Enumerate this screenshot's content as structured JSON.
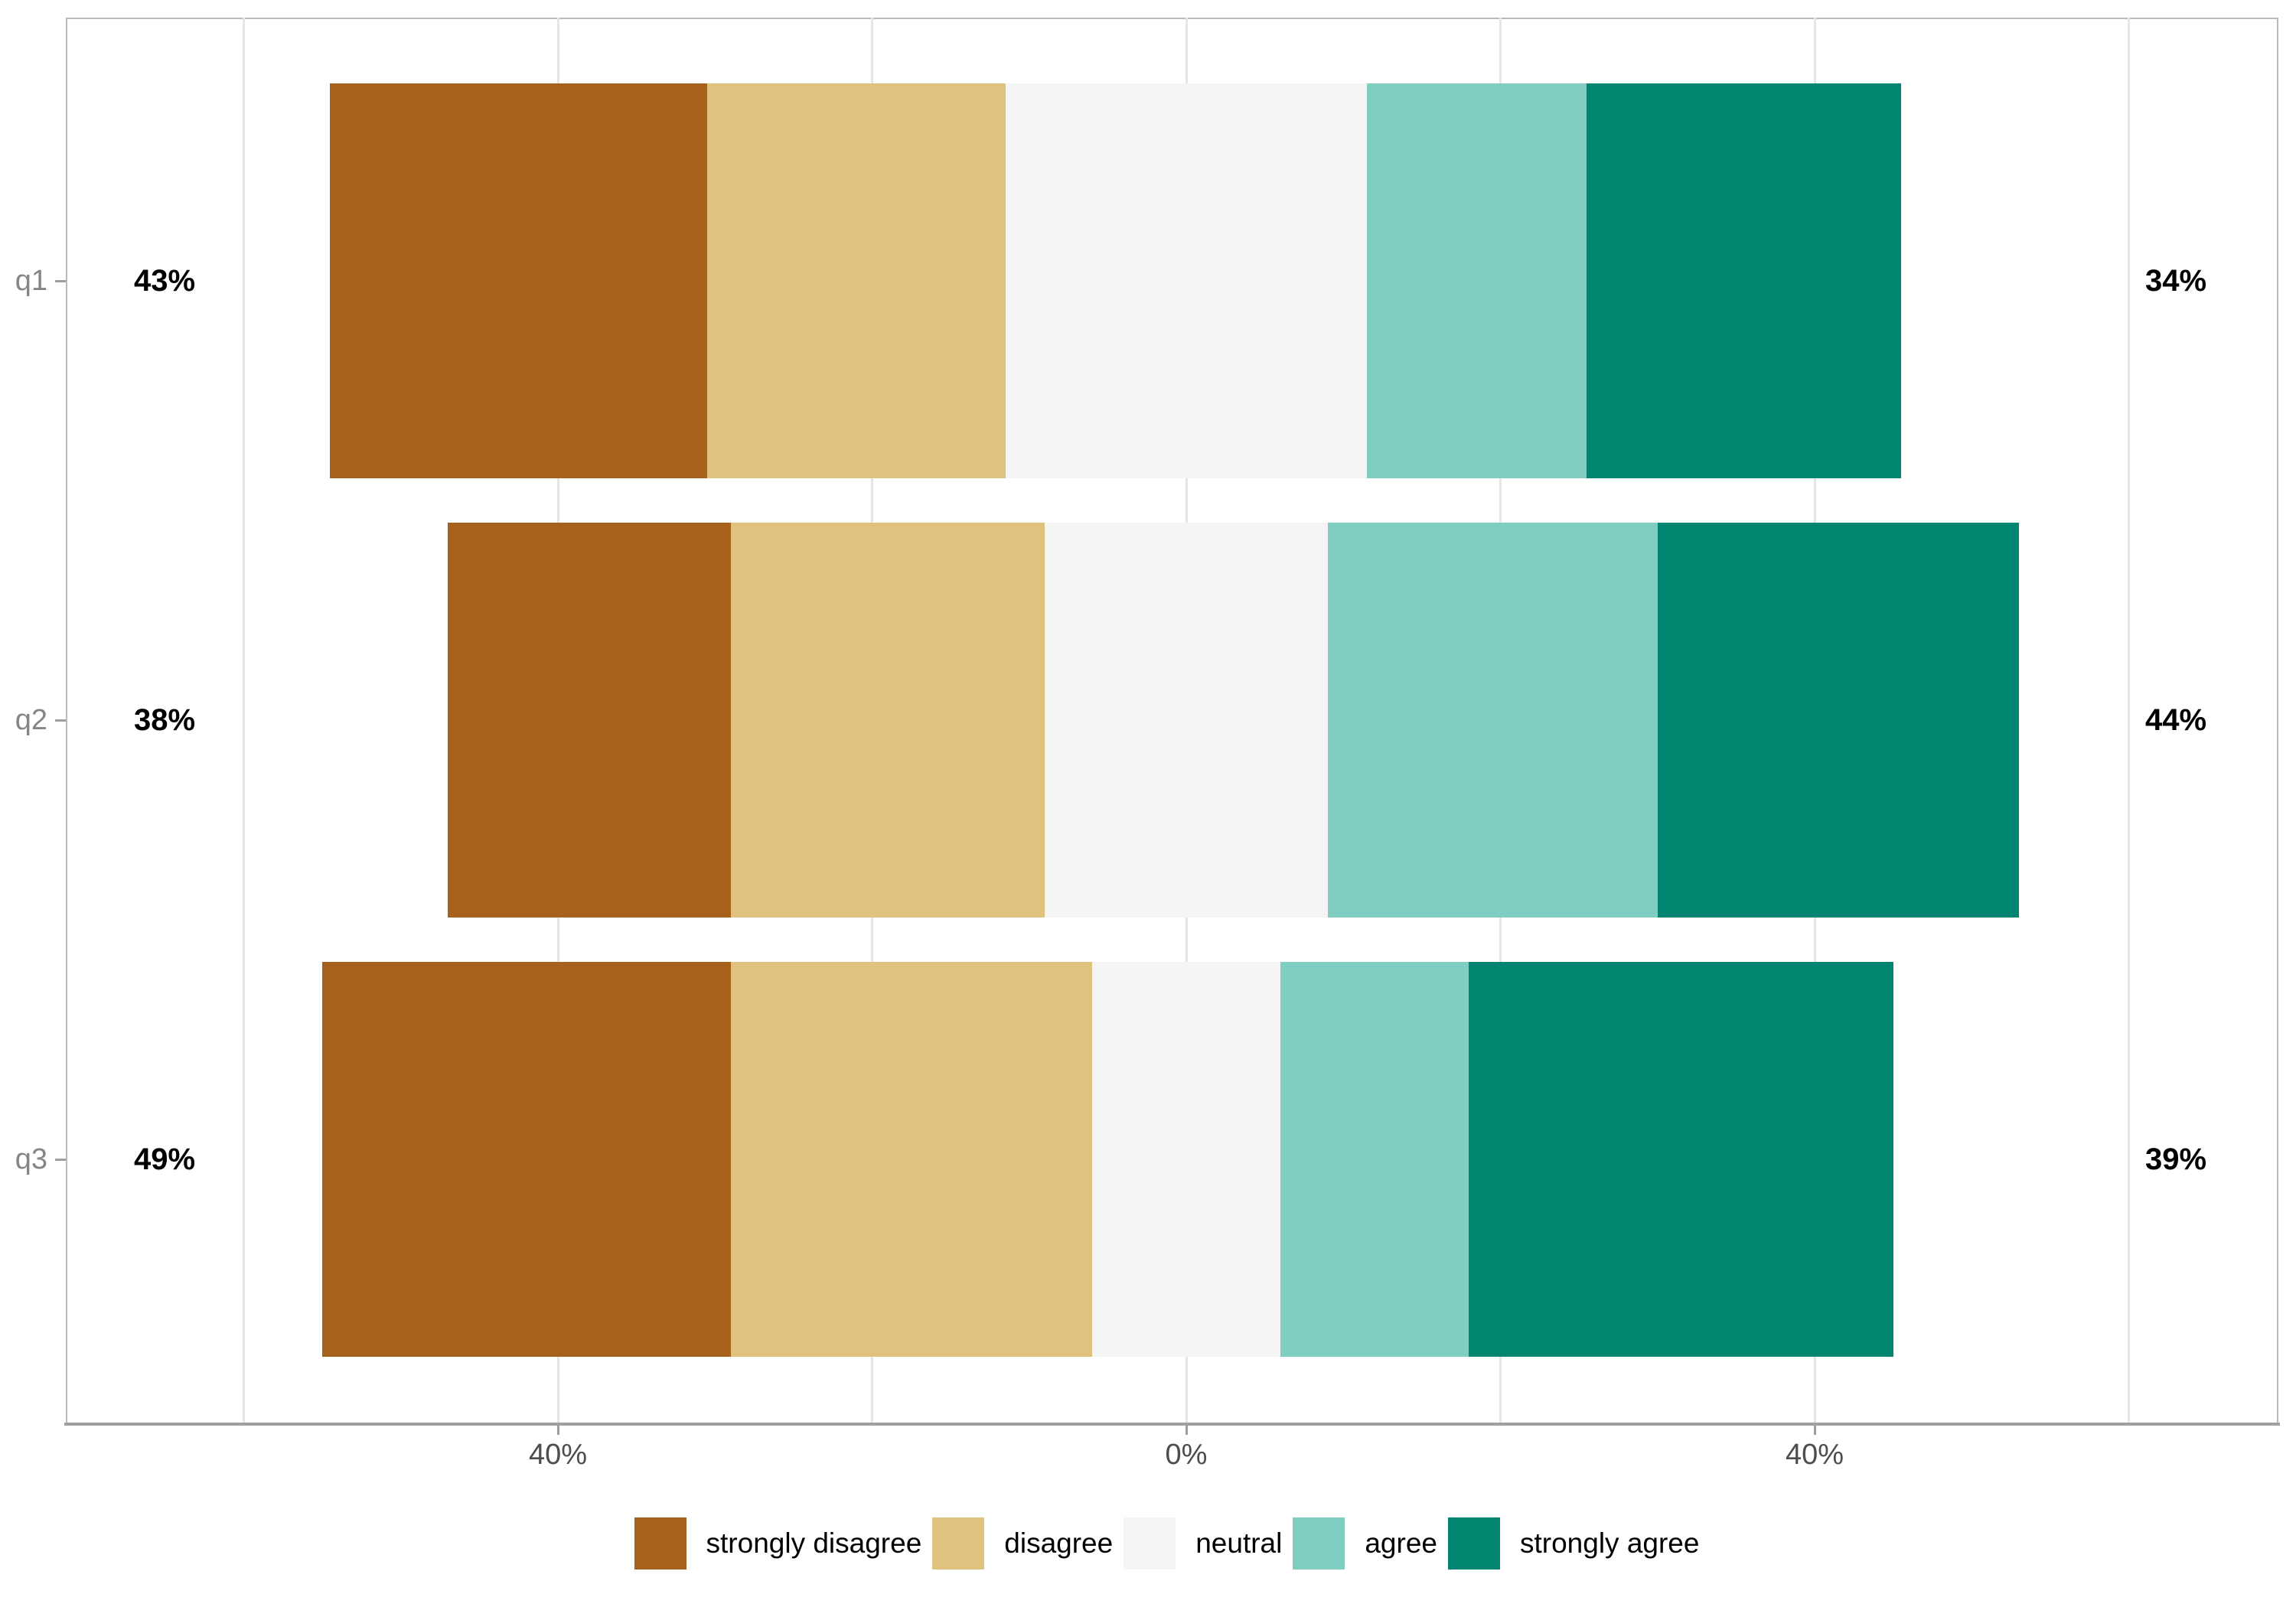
{
  "chart_data": {
    "type": "bar",
    "subtype": "diverging_stacked_likert",
    "title": "",
    "categories": [
      "q1",
      "q2",
      "q3"
    ],
    "levels": [
      "strongly disagree",
      "disagree",
      "neutral",
      "agree",
      "strongly agree"
    ],
    "colors": {
      "strongly disagree": "#a6611a",
      "disagree": "#dfc27d",
      "neutral": "#f5f5f5",
      "agree": "#80cdc1",
      "strongly agree": "#018571"
    },
    "series": [
      {
        "name": "strongly disagree",
        "values": [
          24,
          18,
          26
        ]
      },
      {
        "name": "disagree",
        "values": [
          19,
          20,
          23
        ]
      },
      {
        "name": "neutral",
        "values": [
          23,
          18,
          12
        ]
      },
      {
        "name": "agree",
        "values": [
          14,
          21,
          12
        ]
      },
      {
        "name": "strongly agree",
        "values": [
          20,
          23,
          27
        ]
      }
    ],
    "left_totals": [
      "43%",
      "38%",
      "49%"
    ],
    "right_totals": [
      "34%",
      "44%",
      "39%"
    ],
    "x_axis": {
      "tick_positions": [
        -40,
        0,
        40
      ],
      "tick_labels": [
        "40%",
        "0%",
        "40%"
      ],
      "gridline_positions": [
        -60,
        -40,
        -20,
        0,
        20,
        40,
        60
      ],
      "range_pct": [
        -71.3,
        69.5
      ]
    },
    "legend": {
      "position": "bottom",
      "entries": [
        "strongly disagree",
        "disagree",
        "neutral",
        "agree",
        "strongly agree"
      ]
    },
    "notes": "neutral band centered on 0%; left label = strongly disagree + disagree; right label = agree + strongly agree"
  }
}
